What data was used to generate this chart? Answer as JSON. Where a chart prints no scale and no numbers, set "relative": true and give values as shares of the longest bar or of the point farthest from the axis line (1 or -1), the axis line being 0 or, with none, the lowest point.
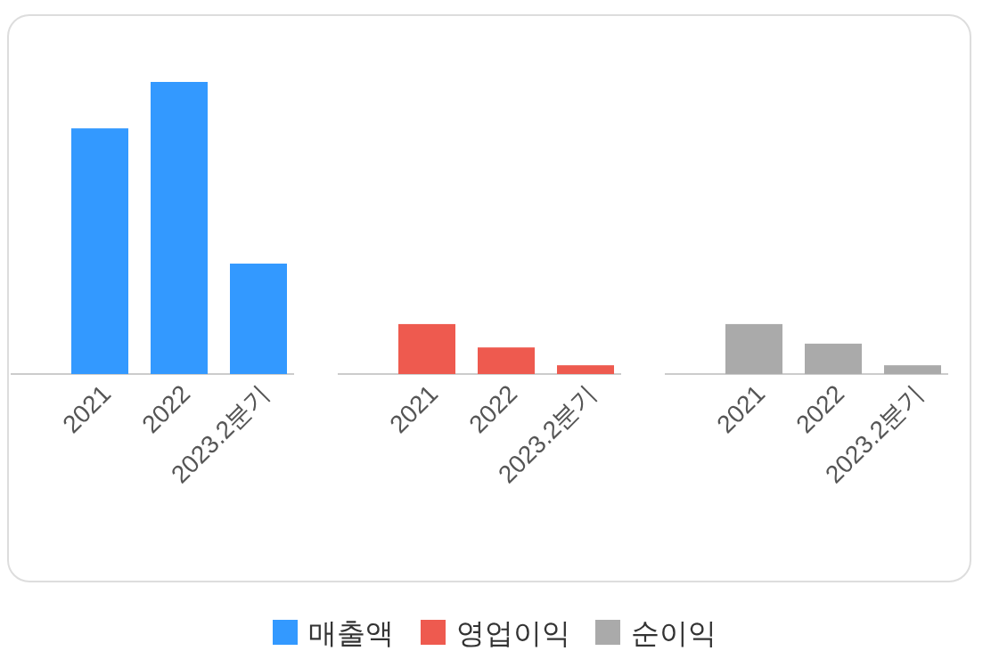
{
  "chart_data": {
    "type": "bar",
    "relative": true,
    "legend": "bottom",
    "categories": [
      "2021",
      "2022",
      "2023.2분기",
      "2021",
      "2022",
      "2023.2분기",
      "2021",
      "2022",
      "2023.2분기"
    ],
    "series": [
      {
        "name": "매출액",
        "color": "#3399ff",
        "values": [
          0.841,
          1,
          0.378,
          null,
          null,
          null,
          null,
          null,
          null
        ]
      },
      {
        "name": "영업이익",
        "color": "#ee5a4f",
        "values": [
          null,
          null,
          null,
          0.171,
          0.091,
          0.03,
          null,
          null,
          null
        ]
      },
      {
        "name": "순이익",
        "color": "#aaaaaa",
        "values": [
          null,
          null,
          null,
          null,
          null,
          null,
          0.171,
          0.104,
          0.03
        ]
      }
    ]
  }
}
